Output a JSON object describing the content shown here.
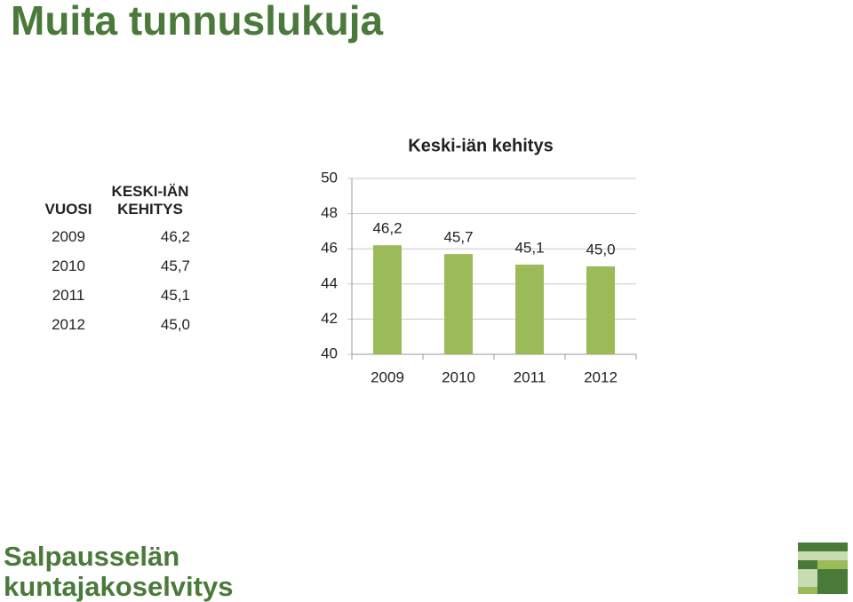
{
  "title": "Muita tunnuslukuja",
  "table": {
    "header": [
      "VUOSI",
      "KESKI-IÄN KEHITYS"
    ],
    "rows": [
      [
        "2009",
        "46,2"
      ],
      [
        "2010",
        "45,7"
      ],
      [
        "2011",
        "45,1"
      ],
      [
        "2012",
        "45,0"
      ]
    ]
  },
  "chart_data": {
    "type": "bar",
    "title": "Keski-iän kehitys",
    "categories": [
      "2009",
      "2010",
      "2011",
      "2012"
    ],
    "values": [
      46.2,
      45.7,
      45.1,
      45.0
    ],
    "value_labels": [
      "46,2",
      "45,7",
      "45,1",
      "45,0"
    ],
    "color": "#9bbb59",
    "ylim": [
      40,
      50
    ],
    "yticks": [
      40,
      42,
      44,
      46,
      48,
      50
    ],
    "grid": true
  },
  "logo": [
    "Salpausselän",
    "kuntajakoselvitys"
  ]
}
